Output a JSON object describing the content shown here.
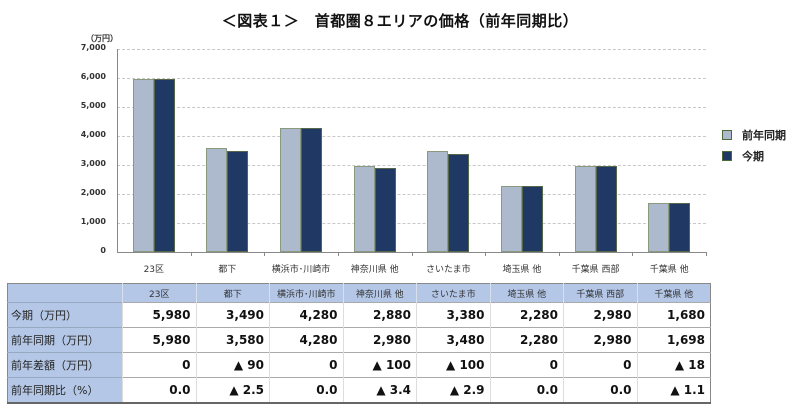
{
  "title": "＜図表１＞　首都圏８エリアの価格（前年同期比）",
  "chart_data": {
    "type": "bar",
    "title": "首都圏８エリアの価格（前年同期比）",
    "ylabel": "（万円）",
    "xlabel": "",
    "ylim": [
      0,
      7000
    ],
    "yticks": [
      "7,000",
      "6,000",
      "5,000",
      "4,000",
      "3,000",
      "2,000",
      "1,000",
      "0"
    ],
    "grid": true,
    "legend_position": "right",
    "categories": [
      "23区",
      "都下",
      "横浜市･川崎市",
      "神奈川県 他",
      "さいたま市",
      "埼玉県 他",
      "千葉県 西部",
      "千葉県 他"
    ],
    "series": [
      {
        "name": "前年同期",
        "color": "#adb9cc",
        "values": [
          5980,
          3580,
          4280,
          2980,
          3480,
          2280,
          2980,
          1698
        ]
      },
      {
        "name": "今期",
        "color": "#1f3864",
        "values": [
          5980,
          3490,
          4280,
          2880,
          3380,
          2280,
          2980,
          1680
        ]
      }
    ]
  },
  "legend": {
    "items": [
      {
        "label": "前年同期",
        "color": "#adb9cc"
      },
      {
        "label": "今期",
        "color": "#1f3864"
      }
    ]
  },
  "table": {
    "headers": [
      "23区",
      "都下",
      "横浜市･川崎市",
      "神奈川県 他",
      "さいたま市",
      "埼玉県 他",
      "千葉県 西部",
      "千葉県 他"
    ],
    "rows": [
      {
        "label": "今期（万円）",
        "cells": [
          "5,980",
          "3,490",
          "4,280",
          "2,880",
          "3,380",
          "2,280",
          "2,980",
          "1,680"
        ]
      },
      {
        "label": "前年同期（万円）",
        "cells": [
          "5,980",
          "3,580",
          "4,280",
          "2,980",
          "3,480",
          "2,280",
          "2,980",
          "1,698"
        ]
      },
      {
        "label": "前年差額（万円）",
        "cells": [
          "0",
          "▲ 90",
          "0",
          "▲ 100",
          "▲ 100",
          "0",
          "0",
          "▲ 18"
        ]
      },
      {
        "label": "前年同期比（%）",
        "cells": [
          "0.0",
          "▲ 2.5",
          "0.0",
          "▲ 3.4",
          "▲ 2.9",
          "0.0",
          "0.0",
          "▲ 1.1"
        ]
      }
    ]
  }
}
